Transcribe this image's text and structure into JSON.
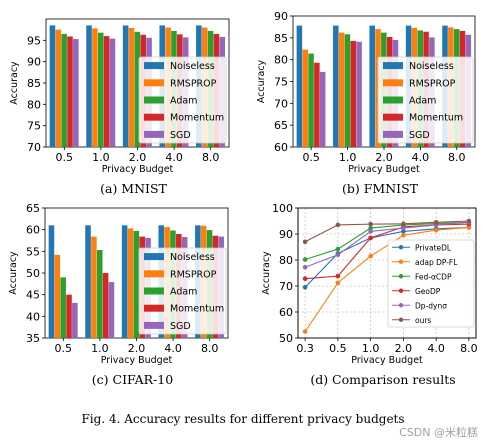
{
  "figure_caption": "Fig. 4.    Accuracy results for different privacy budgets",
  "watermark": "CSDN @米粒糕",
  "colors": {
    "Noiseless": "#1f77b4",
    "RMSPROP": "#ff7f0e",
    "Adam": "#2ca02c",
    "Momentum": "#d62728",
    "SGD": "#9467bd"
  },
  "line_colors": {
    "PrivateDL": "#1f77b4",
    "adap DP-FL": "#ff7f0e",
    "Fed-αCDP": "#2ca02c",
    "GeoDP": "#d62728",
    "Dp-dynσ": "#9467bd",
    "ours": "#8c564b"
  },
  "chart_data": [
    {
      "type": "bar",
      "caption": "(a)  MNIST",
      "xlabel": "Privacy Budget",
      "ylabel": "Accuracy",
      "ylim": [
        70,
        100
      ],
      "yticks": [
        70,
        75,
        80,
        85,
        90,
        95
      ],
      "categories": [
        "0.5",
        "1.0",
        "2.0",
        "4.0",
        "8.0"
      ],
      "legend_position": "lower-right",
      "series": [
        {
          "name": "Noiseless",
          "values": [
            98.5,
            98.5,
            98.5,
            98.5,
            98.5
          ]
        },
        {
          "name": "RMSPROP",
          "values": [
            97.5,
            97.8,
            97.9,
            98.0,
            98.0
          ]
        },
        {
          "name": "Adam",
          "values": [
            96.5,
            96.8,
            97.0,
            97.2,
            97.2
          ]
        },
        {
          "name": "Momentum",
          "values": [
            95.9,
            96.0,
            96.3,
            96.4,
            96.5
          ]
        },
        {
          "name": "SGD",
          "values": [
            95.3,
            95.4,
            95.6,
            95.7,
            95.8
          ]
        }
      ]
    },
    {
      "type": "bar",
      "caption": "(b)  FMNIST",
      "xlabel": "Privacy Budget",
      "ylabel": "Accuracy",
      "ylim": [
        60,
        90
      ],
      "yticks": [
        60,
        65,
        70,
        75,
        80,
        85,
        90
      ],
      "categories": [
        "0.5",
        "1.0",
        "2.0",
        "4.0",
        "8.0"
      ],
      "legend_position": "lower-right",
      "series": [
        {
          "name": "Noiseless",
          "values": [
            87.8,
            87.8,
            87.8,
            87.8,
            87.8
          ]
        },
        {
          "name": "RMSPROP",
          "values": [
            82.3,
            86.2,
            87.0,
            87.3,
            87.4
          ]
        },
        {
          "name": "Adam",
          "values": [
            81.4,
            85.8,
            86.2,
            86.7,
            87.0
          ]
        },
        {
          "name": "Momentum",
          "values": [
            79.3,
            84.3,
            85.2,
            86.4,
            86.6
          ]
        },
        {
          "name": "SGD",
          "values": [
            77.2,
            84.1,
            84.5,
            85.1,
            85.7
          ]
        }
      ]
    },
    {
      "type": "bar",
      "caption": "(c)  CIFAR-10",
      "xlabel": "Privacy Budget",
      "ylabel": "Accuracy",
      "ylim": [
        35,
        65
      ],
      "yticks": [
        35,
        40,
        45,
        50,
        55,
        60,
        65
      ],
      "categories": [
        "0.5",
        "1.0",
        "2.0",
        "4.0",
        "8.0"
      ],
      "legend_position": "lower-right",
      "series": [
        {
          "name": "Noiseless",
          "values": [
            61.0,
            61.0,
            61.0,
            61.0,
            61.0
          ]
        },
        {
          "name": "RMSPROP",
          "values": [
            54.2,
            58.4,
            60.3,
            60.6,
            60.9
          ]
        },
        {
          "name": "Adam",
          "values": [
            49.0,
            55.3,
            59.7,
            59.8,
            59.9
          ]
        },
        {
          "name": "Momentum",
          "values": [
            45.0,
            50.0,
            58.4,
            59.0,
            58.6
          ]
        },
        {
          "name": "SGD",
          "values": [
            43.1,
            47.9,
            58.1,
            58.3,
            58.4
          ]
        }
      ]
    },
    {
      "type": "line",
      "caption": "(d)  Comparison results",
      "xlabel": "Privacy Budget",
      "ylabel": "Accuracy",
      "ylim": [
        50,
        100
      ],
      "yticks": [
        50,
        60,
        70,
        80,
        90,
        100
      ],
      "categories": [
        "0.3",
        "0.5",
        "1.0",
        "2.0",
        "4.0",
        "8.0"
      ],
      "grid": true,
      "legend_position": "right",
      "series": [
        {
          "name": "PrivateDL",
          "values": [
            69.5,
            82.5,
            88.5,
            91.0,
            92.0,
            92.5
          ]
        },
        {
          "name": "adap DP-FL",
          "values": [
            52.5,
            71.2,
            81.5,
            89.5,
            91.5,
            92.5
          ]
        },
        {
          "name": "Fed-αCDP",
          "values": [
            80.2,
            84.2,
            92.3,
            93.5,
            94.0,
            94.5
          ]
        },
        {
          "name": "GeoDP",
          "values": [
            72.8,
            73.8,
            88.5,
            92.7,
            93.5,
            93.8
          ]
        },
        {
          "name": "Dp-dynσ",
          "values": [
            77.2,
            82.0,
            91.0,
            92.3,
            93.5,
            94.5
          ]
        },
        {
          "name": "ours",
          "values": [
            87.0,
            93.5,
            93.8,
            93.9,
            94.5,
            95.0
          ]
        }
      ]
    }
  ]
}
